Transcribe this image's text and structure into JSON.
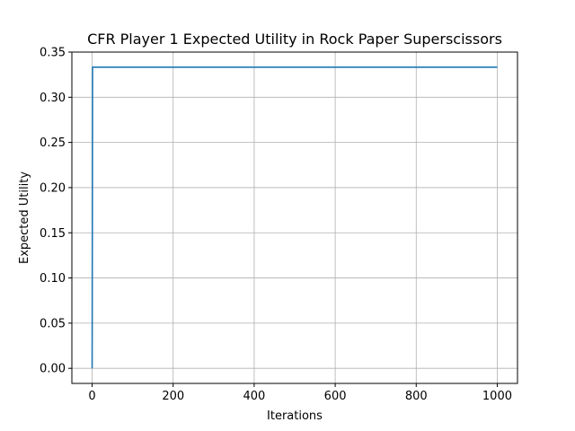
{
  "chart_data": {
    "type": "line",
    "title": "CFR Player 1 Expected Utility in Rock Paper Superscissors",
    "xlabel": "Iterations",
    "ylabel": "Expected Utility",
    "xlim": [
      -50,
      1050
    ],
    "ylim": [
      -0.0167,
      0.35
    ],
    "xticks": [
      0,
      200,
      400,
      600,
      800,
      1000
    ],
    "yticks": [
      0.0,
      0.05,
      0.1,
      0.15,
      0.2,
      0.25,
      0.3,
      0.35
    ],
    "ytick_labels": [
      "0.00",
      "0.05",
      "0.10",
      "0.15",
      "0.20",
      "0.25",
      "0.30",
      "0.35"
    ],
    "xtick_labels": [
      "0",
      "200",
      "400",
      "600",
      "800",
      "1000"
    ],
    "grid": true,
    "series": [
      {
        "color": "#1f77b4",
        "x": [
          0,
          1,
          1000
        ],
        "y": [
          0.0,
          0.3333,
          0.3333
        ]
      }
    ]
  }
}
